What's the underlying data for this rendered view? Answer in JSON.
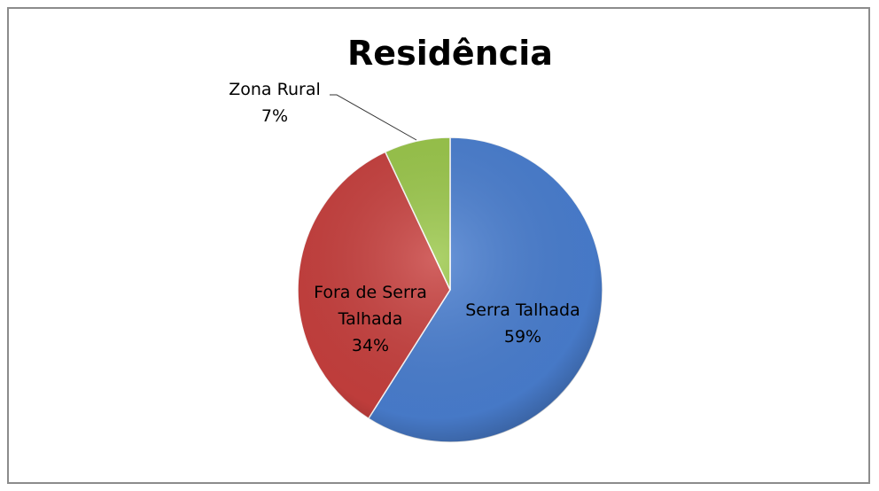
{
  "chart_data": {
    "type": "pie",
    "title": "Residência",
    "categories": [
      "Serra Talhada",
      "Fora de Serra Talhada",
      "Zona Rural"
    ],
    "values": [
      59,
      34,
      7
    ],
    "value_labels": [
      "59%",
      "34%",
      "7%"
    ],
    "colors": [
      "#4a7fd1",
      "#c8403e",
      "#9bc84a"
    ]
  }
}
